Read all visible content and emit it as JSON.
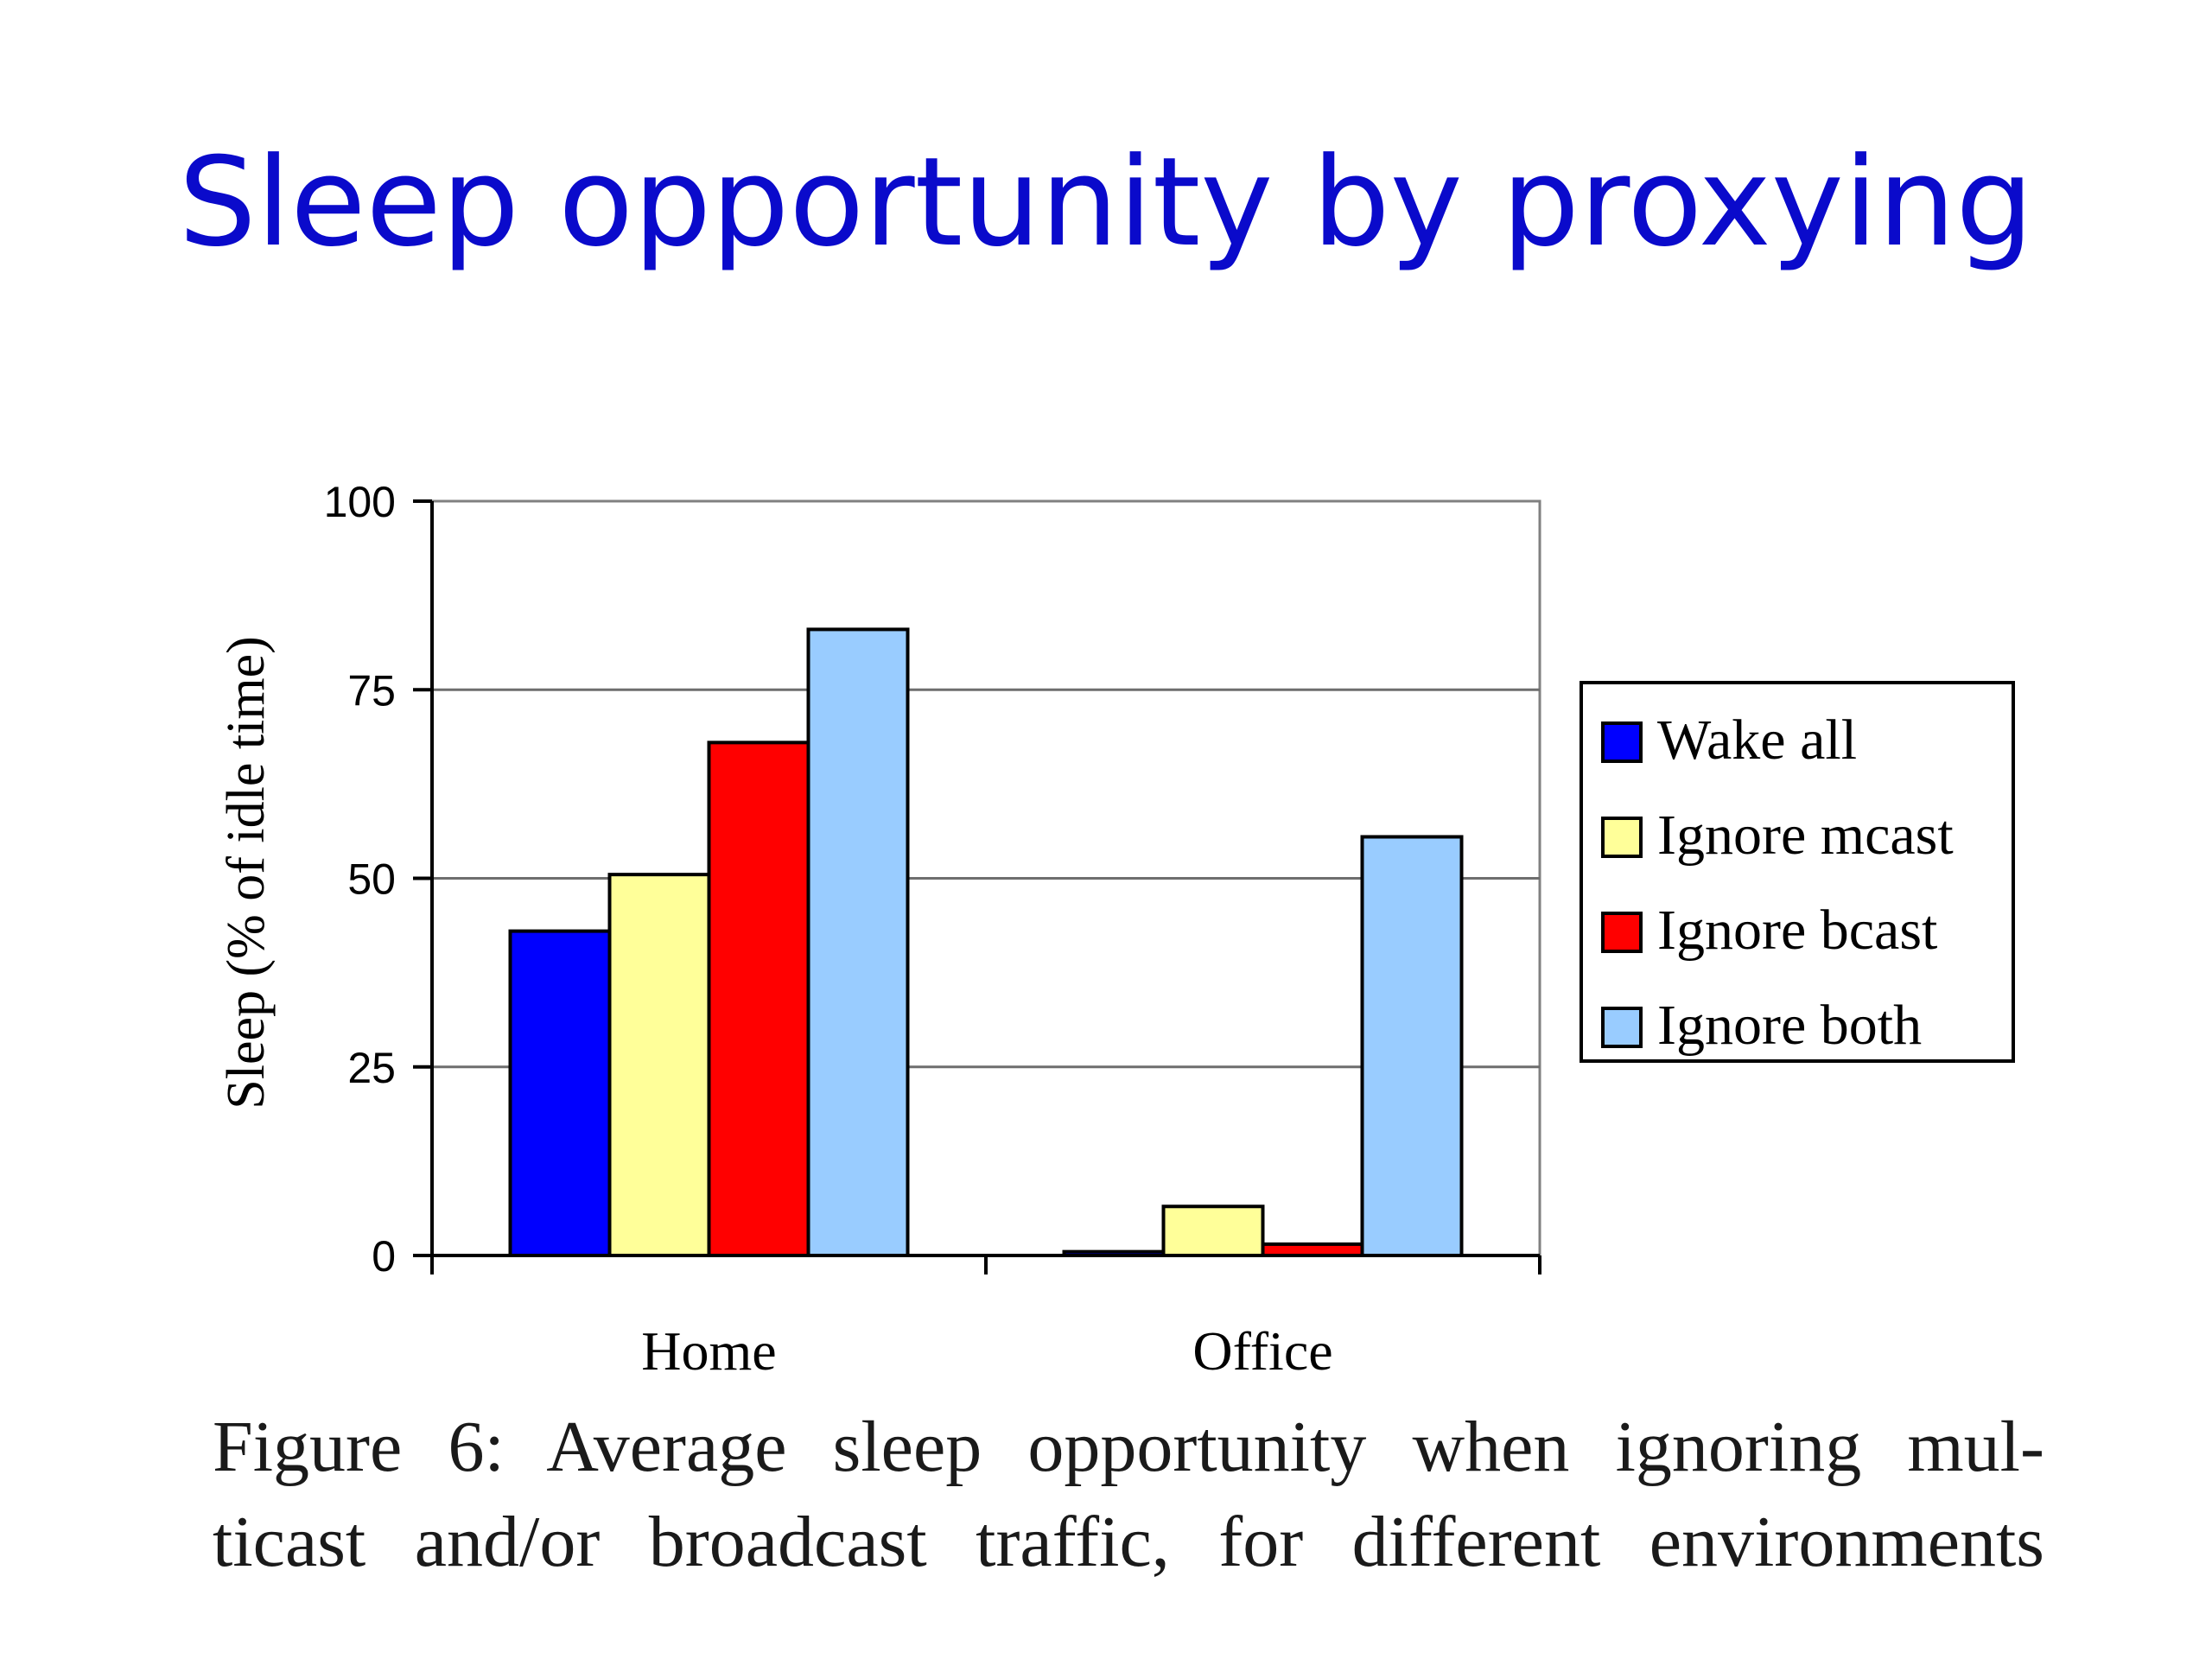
{
  "slide": {
    "title": "Sleep opportunity by proxying"
  },
  "caption": {
    "line1": "Figure 6: Average sleep opportunity when ignoring mul-",
    "line2": "ticast and/or broadcast traffic, for different environments"
  },
  "chart_data": {
    "type": "bar",
    "categories": [
      "Home",
      "Office"
    ],
    "series": [
      {
        "name": "Wake all",
        "values": [
          43,
          0.5
        ],
        "color": "#0000ff"
      },
      {
        "name": "Ignore mcast",
        "values": [
          50.5,
          6.5
        ],
        "color": "#ffff99"
      },
      {
        "name": "Ignore bcast",
        "values": [
          68,
          1.5
        ],
        "color": "#ff0000"
      },
      {
        "name": "Ignore both",
        "values": [
          83,
          55.5
        ],
        "color": "#99ccff"
      }
    ],
    "ylabel": "Sleep (% of idle time)",
    "ylim": [
      0,
      100
    ],
    "yticks": [
      "0",
      "25",
      "50",
      "75",
      "100"
    ],
    "grid": true,
    "legend": "right"
  }
}
